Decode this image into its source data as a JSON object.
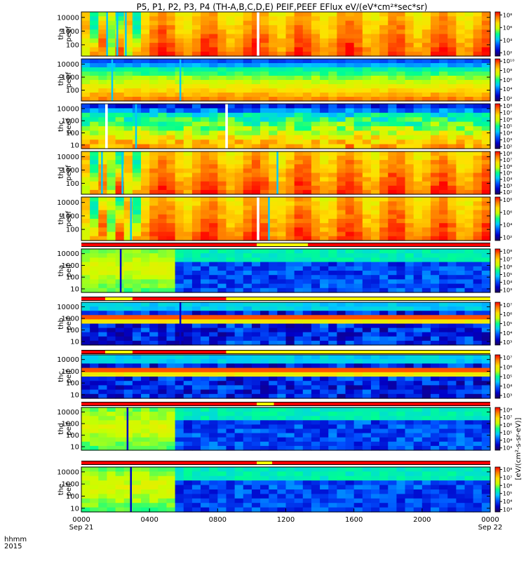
{
  "title": "P5, P1, P2, P3, P4 (TH-A,B,C,D,E) PEIF,PEEF EFlux eV/(eV*cm²*sec*sr)",
  "right_label": "[eV/(cm²-s-sr-eV)]",
  "chart_data": {
    "type": "heatmap",
    "title": "P5, P1, P2, P3, P4 (TH-A,B,C,D,E) PEIF,PEEF EFlux eV/(eV*cm²*sec*sr)",
    "x_axis": {
      "unit_label": "hhmm",
      "year_label": "2015",
      "ticks": [
        "0000",
        "0400",
        "0800",
        "1200",
        "1600",
        "2000",
        "0000"
      ],
      "tick_hours": [
        0,
        4,
        8,
        12,
        16,
        20,
        24
      ],
      "date_labels": [
        {
          "text": "Sep 21",
          "hour": 0
        },
        {
          "text": "Sep 22",
          "hour": 24
        }
      ],
      "range_hours": [
        0,
        24
      ]
    },
    "colormap": [
      "#1c0058",
      "#0000c8",
      "#0050ff",
      "#00c8ff",
      "#00ff90",
      "#c8ff00",
      "#ffe000",
      "#ff8000",
      "#ff0000"
    ],
    "panels": [
      {
        "id": "tha-peef",
        "label_top": "tha",
        "label_bottom": "peef",
        "y_ticks": [
          "10000",
          "1000",
          "100"
        ],
        "y_tick_values": [
          10000,
          1000,
          100
        ],
        "y_range": [
          15,
          25000
        ],
        "colorbar_ticks": [
          "10⁸",
          "10⁶",
          "10⁴",
          "10²"
        ],
        "colorbar_values": [
          100000000,
          1000000,
          10000,
          100
        ],
        "colorbar_range": [
          30,
          300000000
        ],
        "kind": "electron_hot",
        "gaps_hours": [
          [
            10.3,
            10.45
          ]
        ],
        "spike_hours": [
          1.5,
          2.1,
          2.6
        ]
      },
      {
        "id": "thb-peef",
        "label_top": "thb",
        "label_bottom": "peef",
        "y_ticks": [
          "10000",
          "1000",
          "100"
        ],
        "y_tick_values": [
          10000,
          1000,
          100
        ],
        "y_range": [
          15,
          25000
        ],
        "colorbar_ticks": [
          "10¹⁰",
          "10⁸",
          "10⁶",
          "10⁴",
          "10²"
        ],
        "colorbar_values": [
          10000000000,
          100000000,
          1000000,
          10000,
          100
        ],
        "colorbar_range": [
          30,
          30000000000
        ],
        "kind": "electron_sw",
        "gaps_hours": [],
        "spike_hours": [
          1.8,
          5.8
        ]
      },
      {
        "id": "thc-peef",
        "label_top": "thc",
        "label_bottom": "peef",
        "y_ticks": [
          "10000",
          "1000",
          "100",
          "10"
        ],
        "y_tick_values": [
          10000,
          1000,
          100,
          10
        ],
        "y_range": [
          5,
          25000
        ],
        "colorbar_ticks": [
          "10⁸",
          "10⁷",
          "10⁶",
          "10⁵",
          "10⁴",
          "10³",
          "10²"
        ],
        "colorbar_values": [
          100000000,
          10000000,
          1000000,
          100000,
          10000,
          1000,
          100
        ],
        "colorbar_range": [
          50,
          200000000
        ],
        "kind": "electron_sw_noisy",
        "gaps_hours": [
          [
            1.4,
            1.55
          ],
          [
            8.45,
            8.6
          ]
        ],
        "spike_hours": [
          3.2
        ]
      },
      {
        "id": "thd-peef",
        "label_top": "thd",
        "label_bottom": "peef",
        "y_ticks": [
          "10000",
          "1000",
          "100"
        ],
        "y_tick_values": [
          10000,
          1000,
          100
        ],
        "y_range": [
          15,
          25000
        ],
        "colorbar_ticks": [
          "10⁸",
          "10⁷",
          "10⁶",
          "10⁵",
          "10⁴",
          "10³",
          "10²"
        ],
        "colorbar_values": [
          100000000,
          10000000,
          1000000,
          100000,
          10000,
          1000,
          100
        ],
        "colorbar_range": [
          50,
          200000000
        ],
        "kind": "electron_hot",
        "gaps_hours": [],
        "spike_hours": [
          1.2,
          2.4,
          11.5
        ]
      },
      {
        "id": "the-peef",
        "label_top": "the",
        "label_bottom": "peef",
        "y_ticks": [
          "10000",
          "1000",
          "100"
        ],
        "y_tick_values": [
          10000,
          1000,
          100
        ],
        "y_range": [
          15,
          25000
        ],
        "colorbar_ticks": [
          "10⁸",
          "10⁶",
          "10⁴",
          "10²"
        ],
        "colorbar_values": [
          100000000,
          1000000,
          10000,
          100
        ],
        "colorbar_range": [
          30,
          300000000
        ],
        "kind": "electron_hot",
        "gaps_hours": [
          [
            10.3,
            10.45
          ]
        ],
        "spike_hours": [
          2.9,
          11.0
        ]
      },
      {
        "id": "tha-peif",
        "label_top": "tha",
        "label_bottom": "peif",
        "y_ticks": [
          "10000",
          "1000",
          "100",
          "10"
        ],
        "y_tick_values": [
          10000,
          1000,
          100,
          10
        ],
        "y_range": [
          5,
          25000
        ],
        "colorbar_ticks": [
          "10⁸",
          "10⁷",
          "10⁶",
          "10⁵",
          "10⁴",
          "10³"
        ],
        "colorbar_values": [
          100000000,
          10000000,
          1000000,
          100000,
          10000,
          1000
        ],
        "colorbar_range": [
          500,
          200000000
        ],
        "kind": "ion_sheath",
        "gaps_hours": [],
        "spike_hours": [
          2.3
        ]
      },
      {
        "id": "thb-peif",
        "label_top": "thb",
        "label_bottom": "peif",
        "y_ticks": [
          "10000",
          "1000",
          "100",
          "10"
        ],
        "y_tick_values": [
          10000,
          1000,
          100,
          10
        ],
        "y_range": [
          5,
          25000
        ],
        "colorbar_ticks": [
          "10⁷",
          "10⁶",
          "10⁵",
          "10⁴",
          "10³"
        ],
        "colorbar_values": [
          10000000,
          1000000,
          100000,
          10000,
          1000
        ],
        "colorbar_range": [
          500,
          20000000
        ],
        "kind": "ion_sw",
        "gaps_hours": [],
        "spike_hours": [
          5.8
        ]
      },
      {
        "id": "thc-peif",
        "label_top": "thc",
        "label_bottom": "peif",
        "y_ticks": [
          "10000",
          "1000",
          "100",
          "10"
        ],
        "y_tick_values": [
          10000,
          1000,
          100,
          10
        ],
        "y_range": [
          5,
          25000
        ],
        "colorbar_ticks": [
          "10⁷",
          "10⁶",
          "10⁵",
          "10⁴",
          "10³"
        ],
        "colorbar_values": [
          10000000,
          1000000,
          100000,
          10000,
          1000
        ],
        "colorbar_range": [
          500,
          20000000
        ],
        "kind": "ion_sw",
        "gaps_hours": [],
        "spike_hours": []
      },
      {
        "id": "thd-peif",
        "label_top": "thd",
        "label_bottom": "peif",
        "y_ticks": [
          "10000",
          "1000",
          "100",
          "10"
        ],
        "y_tick_values": [
          10000,
          1000,
          100,
          10
        ],
        "y_range": [
          5,
          25000
        ],
        "colorbar_ticks": [
          "10⁸",
          "10⁷",
          "10⁶",
          "10⁵",
          "10⁴",
          "10³"
        ],
        "colorbar_values": [
          100000000,
          10000000,
          1000000,
          100000,
          10000,
          1000
        ],
        "colorbar_range": [
          500,
          200000000
        ],
        "kind": "ion_sheath",
        "gaps_hours": [],
        "spike_hours": [
          2.7
        ]
      },
      {
        "id": "the-peif",
        "label_top": "the",
        "label_bottom": "peif",
        "y_ticks": [
          "10000",
          "1000",
          "100",
          "10"
        ],
        "y_tick_values": [
          10000,
          1000,
          100,
          10
        ],
        "y_range": [
          5,
          25000
        ],
        "colorbar_ticks": [
          "10⁸",
          "10⁷",
          "10⁶",
          "10⁵",
          "10⁴",
          "10³"
        ],
        "colorbar_values": [
          100000000,
          10000000,
          1000000,
          100000,
          10000,
          1000
        ],
        "colorbar_range": [
          500,
          200000000
        ],
        "kind": "ion_sheath",
        "gaps_hours": [],
        "spike_hours": [
          2.9
        ]
      }
    ],
    "mode_bars": [
      {
        "after_panel": "the-peef",
        "segments": [
          {
            "from": 0,
            "to": 10.3,
            "color": "#ff0000"
          },
          {
            "from": 10.3,
            "to": 13.3,
            "color": "#ffff00"
          },
          {
            "from": 13.3,
            "to": 24,
            "color": "#ff0000"
          }
        ]
      },
      {
        "after_panel": "tha-peif",
        "segments": [
          {
            "from": 0,
            "to": 1.4,
            "color": "#ff0000"
          },
          {
            "from": 1.4,
            "to": 3.0,
            "color": "#ffff00"
          },
          {
            "from": 3.0,
            "to": 8.5,
            "color": "#ff0000"
          },
          {
            "from": 8.5,
            "to": 24,
            "color": "#ffff00"
          }
        ]
      },
      {
        "after_panel": "thb-peif",
        "segments": [
          {
            "from": 0,
            "to": 1.4,
            "color": "#ff0000"
          },
          {
            "from": 1.4,
            "to": 3.0,
            "color": "#ffff00"
          },
          {
            "from": 3.0,
            "to": 8.5,
            "color": "#ff0000"
          },
          {
            "from": 8.5,
            "to": 24,
            "color": "#ffff00"
          }
        ]
      },
      {
        "after_panel": "thc-peif",
        "segments": [
          {
            "from": 0,
            "to": 10.3,
            "color": "#ff0000"
          },
          {
            "from": 10.3,
            "to": 11.3,
            "color": "#ffff00"
          },
          {
            "from": 11.3,
            "to": 24,
            "color": "#ff0000"
          }
        ]
      },
      {
        "after_panel": "thd-peif",
        "segments": [
          {
            "from": 0,
            "to": 10.3,
            "color": "#ff0000"
          },
          {
            "from": 10.3,
            "to": 11.2,
            "color": "#ffff00"
          },
          {
            "from": 11.2,
            "to": 24,
            "color": "#ff0000"
          }
        ]
      }
    ]
  }
}
